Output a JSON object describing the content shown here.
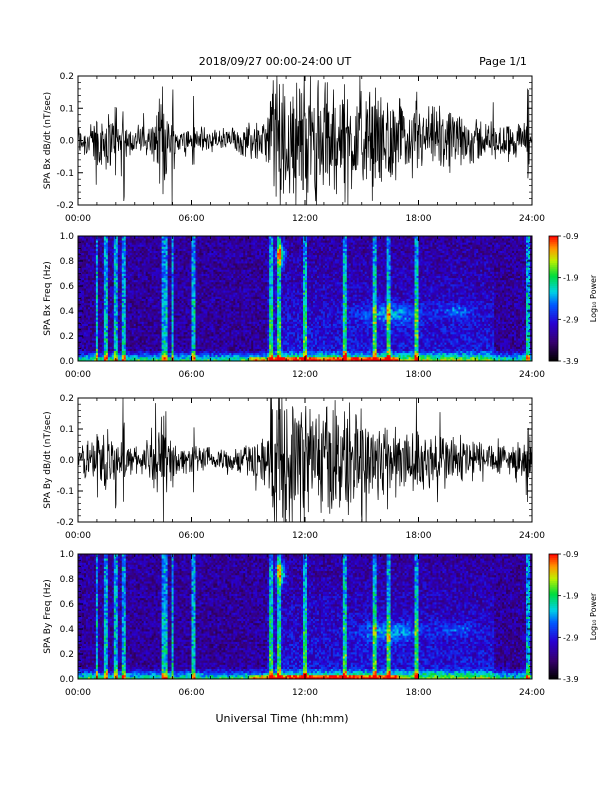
{
  "header": {
    "date_range": "2018/09/27  00:00-24:00 UT",
    "page": "Page 1/1"
  },
  "xaxis": {
    "label": "Universal Time (hh:mm)",
    "ticks": [
      "00:00",
      "06:00",
      "12:00",
      "18:00",
      "24:00"
    ],
    "range_hours": [
      0,
      24
    ]
  },
  "colorbar": {
    "label": "Log₁₀ Power",
    "ticks": [
      "-0.9",
      "-1.9",
      "-2.9",
      "-3.9"
    ],
    "range": [
      -3.9,
      -0.9
    ]
  },
  "chart_data": [
    {
      "type": "line",
      "ylabel": "SPA Bx dB/dt (nT/sec)",
      "ylim": [
        -0.2,
        0.2
      ],
      "yticks": [
        "-0.2",
        "-0.1",
        "0.0",
        "0.1",
        "0.2"
      ],
      "amplitude_profile": {
        "hours": [
          0,
          1,
          1.5,
          2,
          3,
          4,
          4.5,
          5,
          6,
          7,
          8,
          9,
          10,
          10.2,
          11,
          12,
          13,
          14,
          15,
          16,
          17,
          18,
          19,
          20,
          21,
          22,
          23,
          24
        ],
        "amplitude": [
          0.06,
          0.08,
          0.12,
          0.07,
          0.05,
          0.07,
          0.18,
          0.06,
          0.05,
          0.05,
          0.05,
          0.06,
          0.08,
          0.25,
          0.25,
          0.25,
          0.22,
          0.2,
          0.2,
          0.15,
          0.14,
          0.12,
          0.12,
          0.1,
          0.09,
          0.07,
          0.06,
          0.07
        ]
      }
    },
    {
      "type": "heatmap",
      "ylabel": "SPA Bx Freq (Hz)",
      "ylim": [
        0.0,
        1.0
      ],
      "yticks": [
        "0.0",
        "0.2",
        "0.4",
        "0.6",
        "0.8",
        "1.0"
      ],
      "zlim": [
        -3.9,
        -0.9
      ],
      "zlabel": "Log₁₀ Power"
    },
    {
      "type": "line",
      "ylabel": "SPA By dB/dt (nT/sec)",
      "ylim": [
        -0.2,
        0.2
      ],
      "yticks": [
        "-0.2",
        "-0.1",
        "0.0",
        "0.1",
        "0.2"
      ],
      "amplitude_profile": {
        "hours": [
          0,
          1,
          1.5,
          2,
          3,
          4,
          4.5,
          5,
          6,
          7,
          8,
          9,
          10,
          10.2,
          11,
          12,
          13,
          14,
          15,
          16,
          17,
          18,
          19,
          20,
          21,
          22,
          23,
          24
        ],
        "amplitude": [
          0.06,
          0.1,
          0.12,
          0.07,
          0.05,
          0.08,
          0.18,
          0.06,
          0.05,
          0.05,
          0.05,
          0.06,
          0.1,
          0.25,
          0.25,
          0.25,
          0.22,
          0.22,
          0.2,
          0.16,
          0.14,
          0.12,
          0.12,
          0.1,
          0.09,
          0.07,
          0.06,
          0.07
        ]
      }
    },
    {
      "type": "heatmap",
      "ylabel": "SPA By Freq (Hz)",
      "ylim": [
        0.0,
        1.0
      ],
      "yticks": [
        "0.0",
        "0.2",
        "0.4",
        "0.6",
        "0.8",
        "1.0"
      ],
      "zlim": [
        -3.9,
        -0.9
      ],
      "zlabel": "Log₁₀ Power"
    }
  ]
}
